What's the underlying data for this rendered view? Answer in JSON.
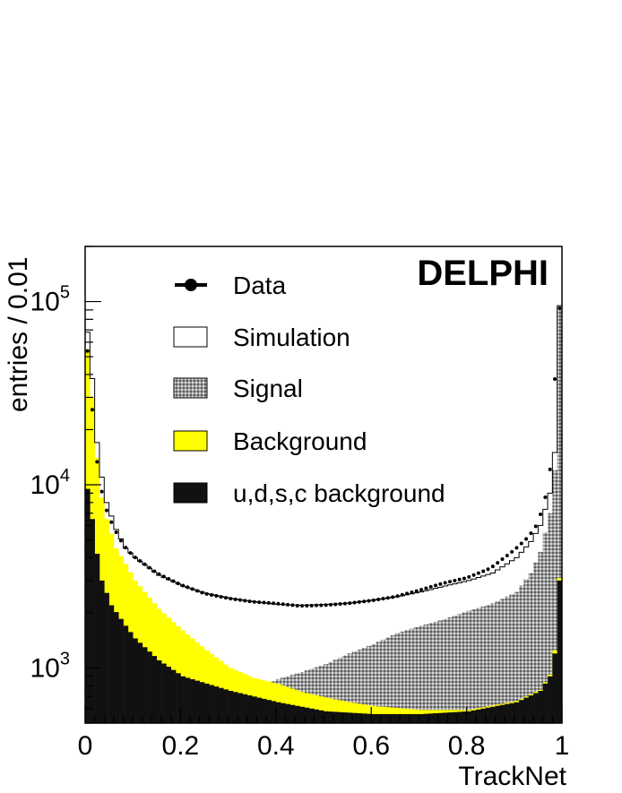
{
  "chart_data": {
    "type": "histogram",
    "experiment": "DELPHI",
    "xlabel": "TrackNet",
    "ylabel": "entries / 0.01",
    "x_range": [
      0,
      1
    ],
    "y_range": [
      500,
      200000
    ],
    "y_scale": "log",
    "grid": false,
    "legend_position": "top",
    "x_ticks": [
      {
        "value": 0,
        "label": "0"
      },
      {
        "value": 0.2,
        "label": "0.2"
      },
      {
        "value": 0.4,
        "label": "0.4"
      },
      {
        "value": 0.6,
        "label": "0.6"
      },
      {
        "value": 0.8,
        "label": "0.8"
      },
      {
        "value": 1,
        "label": "1"
      }
    ],
    "y_ticks": [
      {
        "value": 1000,
        "base": "10",
        "exp": "3"
      },
      {
        "value": 10000,
        "base": "10",
        "exp": "4"
      },
      {
        "value": 100000,
        "base": "10",
        "exp": "5"
      }
    ],
    "legend": [
      {
        "label": "Data",
        "style": "marker"
      },
      {
        "label": "Simulation",
        "style": "open"
      },
      {
        "label": "Signal",
        "style": "hatched"
      },
      {
        "label": "Background",
        "style": "yellow"
      },
      {
        "label": "u,d,s,c background",
        "style": "black"
      }
    ],
    "colors": {
      "simulation": "#ffffff",
      "signal": "#8c8c8c",
      "background": "#ffff00",
      "udsc": "#111111",
      "data": "#000000"
    },
    "bin_width": 0.01,
    "anchors": {
      "udsc": [
        [
          0,
          9500
        ],
        [
          0.01,
          6500
        ],
        [
          0.02,
          4200
        ],
        [
          0.03,
          3000
        ],
        [
          0.05,
          2200
        ],
        [
          0.08,
          1700
        ],
        [
          0.1,
          1450
        ],
        [
          0.15,
          1100
        ],
        [
          0.2,
          900
        ],
        [
          0.3,
          750
        ],
        [
          0.4,
          650
        ],
        [
          0.5,
          580
        ],
        [
          0.6,
          560
        ],
        [
          0.7,
          560
        ],
        [
          0.8,
          580
        ],
        [
          0.9,
          650
        ],
        [
          0.95,
          750
        ],
        [
          0.97,
          900
        ],
        [
          0.98,
          1200
        ],
        [
          0.99,
          3000
        ]
      ],
      "background": [
        [
          0,
          55000
        ],
        [
          0.01,
          30000
        ],
        [
          0.02,
          14000
        ],
        [
          0.03,
          8500
        ],
        [
          0.04,
          6500
        ],
        [
          0.06,
          4500
        ],
        [
          0.08,
          3700
        ],
        [
          0.1,
          3000
        ],
        [
          0.15,
          2100
        ],
        [
          0.2,
          1600
        ],
        [
          0.25,
          1250
        ],
        [
          0.3,
          1000
        ],
        [
          0.35,
          880
        ],
        [
          0.4,
          820
        ],
        [
          0.45,
          740
        ],
        [
          0.5,
          690
        ],
        [
          0.55,
          650
        ],
        [
          0.6,
          620
        ],
        [
          0.7,
          590
        ],
        [
          0.8,
          590
        ],
        [
          0.9,
          660
        ],
        [
          0.95,
          760
        ],
        [
          0.97,
          920
        ],
        [
          0.98,
          1250
        ],
        [
          0.99,
          3100
        ]
      ],
      "signal": [
        [
          0,
          500
        ],
        [
          0.3,
          650
        ],
        [
          0.4,
          870
        ],
        [
          0.45,
          950
        ],
        [
          0.5,
          1050
        ],
        [
          0.55,
          1200
        ],
        [
          0.6,
          1350
        ],
        [
          0.65,
          1550
        ],
        [
          0.7,
          1700
        ],
        [
          0.75,
          1850
        ],
        [
          0.8,
          2050
        ],
        [
          0.85,
          2250
        ],
        [
          0.9,
          2600
        ],
        [
          0.93,
          3300
        ],
        [
          0.95,
          4300
        ],
        [
          0.97,
          7000
        ],
        [
          0.98,
          12000
        ],
        [
          0.99,
          90000
        ]
      ],
      "simulation": [
        [
          0,
          68000
        ],
        [
          0.01,
          38000
        ],
        [
          0.02,
          17000
        ],
        [
          0.03,
          11000
        ],
        [
          0.04,
          8000
        ],
        [
          0.06,
          5700
        ],
        [
          0.08,
          4500
        ],
        [
          0.1,
          4000
        ],
        [
          0.15,
          3200
        ],
        [
          0.2,
          2800
        ],
        [
          0.25,
          2550
        ],
        [
          0.3,
          2400
        ],
        [
          0.35,
          2300
        ],
        [
          0.4,
          2220
        ],
        [
          0.45,
          2200
        ],
        [
          0.5,
          2220
        ],
        [
          0.55,
          2260
        ],
        [
          0.6,
          2350
        ],
        [
          0.65,
          2450
        ],
        [
          0.7,
          2600
        ],
        [
          0.75,
          2800
        ],
        [
          0.8,
          3000
        ],
        [
          0.85,
          3300
        ],
        [
          0.9,
          4000
        ],
        [
          0.93,
          4900
        ],
        [
          0.95,
          6000
        ],
        [
          0.97,
          9000
        ],
        [
          0.98,
          15000
        ],
        [
          0.99,
          95000
        ]
      ],
      "data": [
        [
          0,
          72000
        ],
        [
          0.01,
          40000
        ],
        [
          0.02,
          16500
        ],
        [
          0.03,
          10800
        ],
        [
          0.04,
          7800
        ],
        [
          0.06,
          5800
        ],
        [
          0.08,
          4700
        ],
        [
          0.1,
          4100
        ],
        [
          0.15,
          3300
        ],
        [
          0.2,
          2850
        ],
        [
          0.25,
          2550
        ],
        [
          0.3,
          2400
        ],
        [
          0.35,
          2300
        ],
        [
          0.4,
          2250
        ],
        [
          0.45,
          2180
        ],
        [
          0.5,
          2200
        ],
        [
          0.55,
          2250
        ],
        [
          0.6,
          2330
        ],
        [
          0.65,
          2450
        ],
        [
          0.7,
          2650
        ],
        [
          0.75,
          2900
        ],
        [
          0.8,
          3100
        ],
        [
          0.85,
          3500
        ],
        [
          0.9,
          4400
        ],
        [
          0.93,
          5200
        ],
        [
          0.95,
          6200
        ],
        [
          0.97,
          9500
        ],
        [
          0.98,
          15500
        ],
        [
          0.99,
          92000
        ]
      ]
    }
  }
}
